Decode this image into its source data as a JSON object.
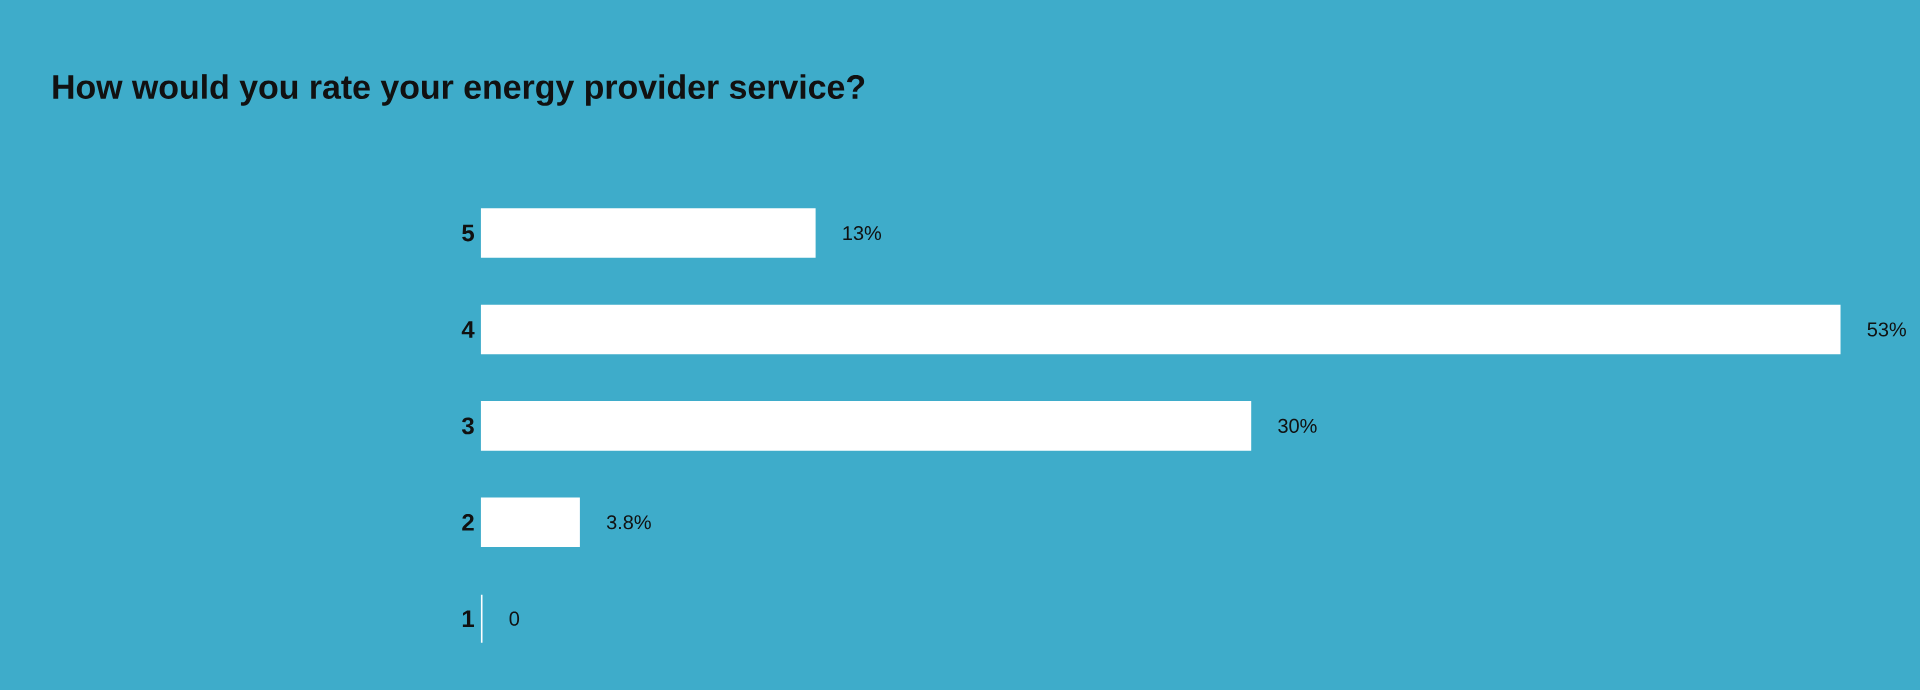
{
  "chart_data": {
    "type": "bar",
    "orientation": "horizontal",
    "title": "How would you rate your energy provider service?",
    "categories": [
      "5",
      "4",
      "3",
      "2",
      "1"
    ],
    "values": [
      13,
      53,
      30,
      3.8,
      0
    ],
    "value_labels": [
      "13%",
      "53%",
      "30%",
      "3.8%",
      "0"
    ],
    "color": "#ffffff"
  }
}
